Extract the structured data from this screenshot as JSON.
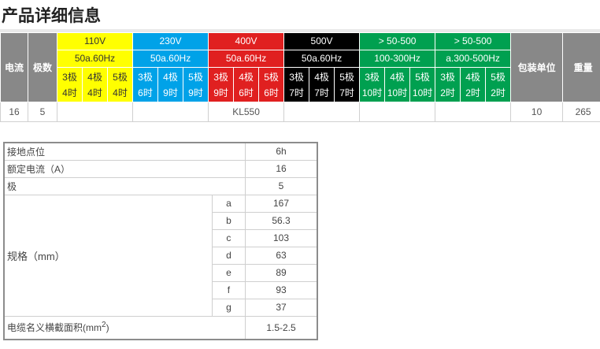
{
  "title": "产品详细信息",
  "spec_table": {
    "headers": {
      "current": "电流",
      "poles": "极数",
      "packing": "包装单位",
      "weight": "重量"
    },
    "voltage_groups": [
      {
        "voltage": "110V",
        "freq": "50a.60Hz",
        "color": "#ffff00",
        "poles": [
          {
            "p": "3极",
            "t": "4时"
          },
          {
            "p": "4极",
            "t": "4时"
          },
          {
            "p": "5极",
            "t": "4时"
          }
        ]
      },
      {
        "voltage": "230V",
        "freq": "50a.60Hz",
        "color": "#00a2e8",
        "poles": [
          {
            "p": "3极",
            "t": "6时"
          },
          {
            "p": "4极",
            "t": "9时"
          },
          {
            "p": "5极",
            "t": "9时"
          }
        ]
      },
      {
        "voltage": "400V",
        "freq": "50a.60Hz",
        "color": "#e02020",
        "poles": [
          {
            "p": "3极",
            "t": "9时"
          },
          {
            "p": "4极",
            "t": "6时"
          },
          {
            "p": "5极",
            "t": "6时"
          }
        ]
      },
      {
        "voltage": "500V",
        "freq": "50a.60Hz",
        "color": "#000000",
        "poles": [
          {
            "p": "3极",
            "t": "7时"
          },
          {
            "p": "4极",
            "t": "7时"
          },
          {
            "p": "5极",
            "t": "7时"
          }
        ]
      },
      {
        "voltage": "> 50-500",
        "freq": "100-300Hz",
        "color": "#00a050",
        "poles": [
          {
            "p": "3极",
            "t": "10时"
          },
          {
            "p": "4极",
            "t": "10时"
          },
          {
            "p": "5极",
            "t": "10时"
          }
        ]
      },
      {
        "voltage": "> 50-500",
        "freq": "a.300-500Hz",
        "color": "#00a050",
        "poles": [
          {
            "p": "3极",
            "t": "2时"
          },
          {
            "p": "4极",
            "t": "2时"
          },
          {
            "p": "5极",
            "t": "2时"
          }
        ]
      }
    ],
    "row": {
      "current": "16",
      "poles": "5",
      "model": "KL550",
      "packing": "10",
      "weight": "265"
    }
  },
  "detail_table": {
    "ground_label": "接地点位",
    "ground_value": "6h",
    "rated_label": "额定电流（A）",
    "rated_value": "16",
    "pole_label": "极",
    "pole_value": "5",
    "dims_label": "规格（mm）",
    "dims": [
      {
        "k": "a",
        "v": "167"
      },
      {
        "k": "b",
        "v": "56.3"
      },
      {
        "k": "c",
        "v": "103"
      },
      {
        "k": "d",
        "v": "63"
      },
      {
        "k": "e",
        "v": "89"
      },
      {
        "k": "f",
        "v": "93"
      },
      {
        "k": "g",
        "v": "37"
      }
    ],
    "cable_label": "电缆名义横截面积(mm",
    "cable_sup": "2",
    "cable_label_end": ")",
    "cable_value": "1.5-2.5"
  }
}
